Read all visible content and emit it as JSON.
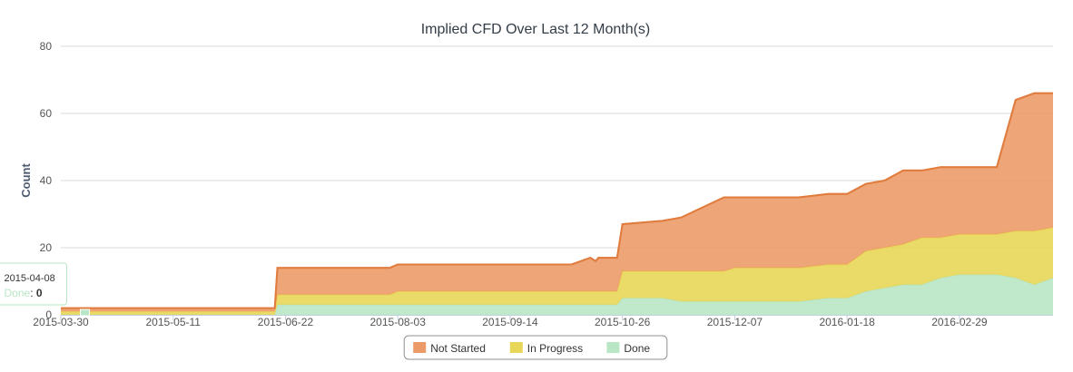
{
  "chart_data": {
    "type": "area",
    "stacked": true,
    "title": "Implied CFD Over Last 12 Month(s)",
    "xlabel": "",
    "ylabel": "Count",
    "ylim": [
      0,
      80
    ],
    "yticks": [
      0,
      20,
      40,
      60,
      80
    ],
    "xlim": [
      "2015-03-30",
      "2016-04-04"
    ],
    "xticks": [
      "2015-03-30",
      "2015-05-11",
      "2015-06-22",
      "2015-08-03",
      "2015-09-14",
      "2015-10-26",
      "2015-12-07",
      "2016-01-18",
      "2016-02-29"
    ],
    "grid": true,
    "legend_position": "bottom-center",
    "x": [
      "2015-03-30",
      "2015-05-11",
      "2015-06-18",
      "2015-06-19",
      "2015-06-22",
      "2015-07-31",
      "2015-08-03",
      "2015-10-07",
      "2015-10-14",
      "2015-10-16",
      "2015-10-17",
      "2015-10-24",
      "2015-10-26",
      "2015-11-10",
      "2015-11-17",
      "2015-12-03",
      "2015-12-07",
      "2015-12-31",
      "2016-01-11",
      "2016-01-18",
      "2016-01-25",
      "2016-02-01",
      "2016-02-08",
      "2016-02-15",
      "2016-02-22",
      "2016-02-29",
      "2016-03-14",
      "2016-03-21",
      "2016-03-28",
      "2016-04-04"
    ],
    "series": [
      {
        "name": "Done",
        "color": "#b9e6c4",
        "values": [
          0,
          0,
          0,
          3,
          3,
          3,
          3,
          3,
          3,
          3,
          3,
          3,
          5,
          5,
          4,
          4,
          4,
          4,
          5,
          5,
          7,
          8,
          9,
          9,
          11,
          12,
          12,
          11,
          9,
          11
        ]
      },
      {
        "name": "In Progress",
        "color": "#e8d658",
        "values": [
          1,
          1,
          1,
          3,
          3,
          3,
          4,
          4,
          4,
          4,
          4,
          4,
          8,
          8,
          9,
          9,
          10,
          10,
          10,
          10,
          12,
          12,
          12,
          14,
          12,
          12,
          12,
          14,
          16,
          15
        ]
      },
      {
        "name": "Not Started",
        "color": "#ec9b68",
        "values": [
          1,
          1,
          1,
          8,
          8,
          8,
          8,
          8,
          10,
          9,
          10,
          10,
          14,
          15,
          16,
          22,
          21,
          21,
          21,
          21,
          20,
          20,
          22,
          20,
          21,
          20,
          20,
          39,
          41,
          40
        ]
      }
    ],
    "tooltip": {
      "date": "2015-04-08",
      "series": "Done",
      "value": "0"
    }
  }
}
